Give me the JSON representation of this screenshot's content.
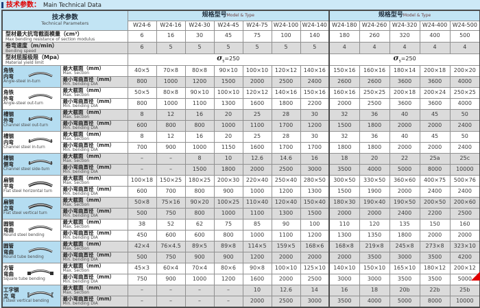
{
  "title": {
    "zh": "技术参数：",
    "en": "Main Technical Data"
  },
  "header": {
    "param_zh": "技术参数",
    "param_en": "Technical Parameters",
    "group_zh": "规格型号",
    "group_en": "Model & Type",
    "columns": [
      "W24-6",
      "W24-16",
      "W24-30",
      "W24-45",
      "W24-75",
      "W24-100",
      "W24-140",
      "W24-180",
      "W24-260",
      "W24-320",
      "W24-400",
      "W24-500"
    ]
  },
  "top_rows": [
    {
      "id": "section-modulus",
      "zh": "型材最大抗弯截面模量（cm³）",
      "en": "Max bending resistance of section modulus",
      "shaded": false,
      "values": [
        "6",
        "16",
        "30",
        "45",
        "75",
        "100",
        "140",
        "180",
        "260",
        "320",
        "400",
        "500"
      ]
    },
    {
      "id": "bending-speed",
      "zh": "卷弯速度（m/min）",
      "en": "Bending speed",
      "shaded": true,
      "values": [
        "6",
        "5",
        "5",
        "5",
        "5",
        "5",
        "5",
        "4",
        "4",
        "4",
        "4",
        "4"
      ]
    }
  ],
  "yield_row": {
    "id": "yield-limit",
    "zh": "型材屈服极限（Mpa）",
    "en": "Material yield limit",
    "sigma": "σ",
    "sub": "s",
    "rest": "=250"
  },
  "sub_labels": {
    "max_zh": "最大截面（mm）",
    "max_en": "Max. Section",
    "dia_zh": "最小弯曲直径（mm）",
    "dia_en": "Min. bending DIA"
  },
  "blocks": [
    {
      "id": "angle-steel-in-turn",
      "zh": "角铁\n内弯",
      "en": "Angle-steel in-turn",
      "blue": true,
      "shade_max": false,
      "shade_dia": true,
      "max": [
        "40×5",
        "70×8",
        "80×8",
        "90×10",
        "100×10",
        "120×12",
        "140×16",
        "150×16",
        "160×16",
        "180×14",
        "200×18",
        "200×20"
      ],
      "dia": [
        "800",
        "1000",
        "1200",
        "1500",
        "2000",
        "2500",
        "2400",
        "2600",
        "2600",
        "3600",
        "3600",
        "4000"
      ]
    },
    {
      "id": "angle-steel-out-turn",
      "zh": "角铁\n外弯",
      "en": "Angle-steel out-turn",
      "blue": false,
      "shade_max": false,
      "shade_dia": false,
      "max": [
        "50×5",
        "80×8",
        "90×10",
        "100×10",
        "120×12",
        "140×16",
        "150×16",
        "160×16",
        "250×25",
        "200×18",
        "200×24",
        "250×25"
      ],
      "dia": [
        "800",
        "1000",
        "1100",
        "1300",
        "1600",
        "1800",
        "2200",
        "2000",
        "2500",
        "3600",
        "3600",
        "4000"
      ]
    },
    {
      "id": "channel-steel-out-turn",
      "zh": "槽钢\n外弯",
      "en": "Channel steel out-turn",
      "blue": true,
      "shade_max": true,
      "shade_dia": true,
      "max": [
        "8",
        "12",
        "16",
        "20",
        "25",
        "28",
        "30",
        "32",
        "36",
        "40",
        "45",
        "50"
      ],
      "dia": [
        "600",
        "800",
        "800",
        "1000",
        "1100",
        "1700",
        "1200",
        "1500",
        "1800",
        "2000",
        "2000",
        "2400"
      ]
    },
    {
      "id": "channel-steel-in-turn",
      "zh": "槽钢\n内弯",
      "en": "Channel steel in-turn",
      "blue": false,
      "shade_max": false,
      "shade_dia": false,
      "max": [
        "8",
        "12",
        "16",
        "20",
        "25",
        "28",
        "30",
        "32",
        "36",
        "40",
        "45",
        "50"
      ],
      "dia": [
        "700",
        "900",
        "1000",
        "1150",
        "1600",
        "1700",
        "1700",
        "1800",
        "1800",
        "2000",
        "2000",
        "2400"
      ]
    },
    {
      "id": "channel-steel-side-turn",
      "zh": "槽钢\n侧弯",
      "en": "Channel steel side-turn",
      "blue": true,
      "shade_max": true,
      "shade_dia": true,
      "max": [
        "–",
        "–",
        "8",
        "10",
        "12.6",
        "14.6",
        "16",
        "18",
        "20",
        "22",
        "25a",
        "25c"
      ],
      "dia": [
        "–",
        "–",
        "1500",
        "1800",
        "2000",
        "2500",
        "3000",
        "3500",
        "4000",
        "5000",
        "8000",
        "10000"
      ]
    },
    {
      "id": "flat-steel-horizontal-turn",
      "zh": "扁钢\n平弯",
      "en": "Flat steel horizontal turn",
      "blue": false,
      "shade_max": false,
      "shade_dia": false,
      "max": [
        "100×18",
        "150×25",
        "180×25",
        "200×30",
        "220×40",
        "250×40",
        "280×50",
        "300×50",
        "330×50",
        "360×60",
        "400×75",
        "500×76"
      ],
      "dia": [
        "600",
        "700",
        "800",
        "900",
        "1000",
        "1200",
        "1300",
        "1500",
        "1900",
        "2000",
        "2400",
        "2400"
      ]
    },
    {
      "id": "flat-steel-vertical-turn",
      "zh": "扁钢\n立弯",
      "en": "Flat steel vertical turn",
      "blue": true,
      "shade_max": true,
      "shade_dia": true,
      "max": [
        "50×8",
        "75×16",
        "90×20",
        "100×25",
        "110×40",
        "120×40",
        "150×40",
        "180×30",
        "190×40",
        "190×50",
        "200×50",
        "200×60"
      ],
      "dia": [
        "500",
        "750",
        "800",
        "1000",
        "1100",
        "1300",
        "1500",
        "2000",
        "2000",
        "2400",
        "2200",
        "2500"
      ]
    },
    {
      "id": "round-steel-bending",
      "zh": "圆钢\n弯曲",
      "en": "Round steel bending",
      "blue": false,
      "shade_max": false,
      "shade_dia": false,
      "max": [
        "38",
        "52",
        "62",
        "75",
        "85",
        "90",
        "100",
        "110",
        "120",
        "135",
        "150",
        "160"
      ],
      "dia": [
        "450",
        "600",
        "600",
        "800",
        "1000",
        "1100",
        "1200",
        "1300",
        "1350",
        "1800",
        "2000",
        "2000"
      ]
    },
    {
      "id": "round-tube-bending",
      "zh": "圆管\n弯曲",
      "en": "Round tube bending",
      "blue": true,
      "shade_max": true,
      "shade_dia": true,
      "max": [
        "42×4",
        "76×4.5",
        "89×5",
        "89×8",
        "114×5",
        "159×5",
        "168×6",
        "168×8",
        "219×8",
        "245×8",
        "273×8",
        "323×10"
      ],
      "dia": [
        "500",
        "750",
        "900",
        "900",
        "1200",
        "2000",
        "2000",
        "2000",
        "3500",
        "3000",
        "3500",
        "4200"
      ]
    },
    {
      "id": "square-tube-bending",
      "zh": "方管\n弯曲",
      "en": "Square tube bending",
      "blue": false,
      "shade_max": false,
      "shade_dia": false,
      "max": [
        "45×3",
        "60×4",
        "70×4",
        "80×6",
        "90×8",
        "100×10",
        "125×10",
        "140×10",
        "150×10",
        "165×10",
        "180×12",
        "200×12"
      ],
      "dia": [
        "750",
        "900",
        "1000",
        "1200",
        "1600",
        "2000",
        "2500",
        "3000",
        "3000",
        "3500",
        "3500",
        "5000"
      ]
    },
    {
      "id": "i-steel-vertical-bending",
      "zh": "工字钢\n立 弯",
      "en": "I steel vertical bending",
      "blue": true,
      "shade_max": true,
      "shade_dia": true,
      "max": [
        "–",
        "–",
        "–",
        "–",
        "10",
        "12.6",
        "14",
        "16",
        "18",
        "20b",
        "22b",
        "25b"
      ],
      "dia": [
        "–",
        "–",
        "–",
        "–",
        "2000",
        "2500",
        "3000",
        "3500",
        "4000",
        "5000",
        "8000",
        "10000"
      ]
    }
  ],
  "colors": {
    "accent_red": "#e00000",
    "header_blue": "#c2e4f4",
    "label_blue": "#b5ddf1",
    "row_gray": "#dbdbdb",
    "border": "#8f8f8f"
  }
}
